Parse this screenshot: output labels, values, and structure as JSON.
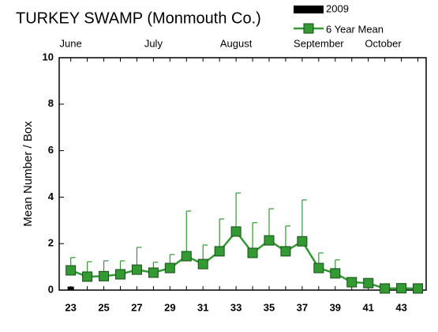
{
  "chart_data": {
    "type": "line",
    "title": "TURKEY SWAMP (Monmouth Co.)",
    "y_label": "Mean Number / Box",
    "x": [
      23,
      24,
      25,
      26,
      27,
      28,
      29,
      30,
      31,
      32,
      33,
      34,
      35,
      36,
      37,
      38,
      39,
      40,
      41,
      42,
      43,
      44
    ],
    "series": [
      {
        "name": "2009",
        "type": "bar",
        "color": "#000000",
        "values": [
          0.15,
          null,
          null,
          null,
          null,
          null,
          null,
          null,
          null,
          null,
          null,
          null,
          null,
          null,
          null,
          null,
          null,
          null,
          null,
          null,
          null,
          null
        ]
      },
      {
        "name": "6 Year Mean",
        "type": "line",
        "color": "#339933",
        "values": [
          0.85,
          0.58,
          0.6,
          0.68,
          0.88,
          0.75,
          0.95,
          1.46,
          1.12,
          1.67,
          2.52,
          1.6,
          2.14,
          1.67,
          2.1,
          0.95,
          0.72,
          0.34,
          0.3,
          0.07,
          0.08,
          0.07
        ],
        "errors": [
          0.55,
          0.64,
          0.66,
          0.58,
          0.96,
          0.45,
          0.58,
          1.94,
          0.82,
          1.39,
          1.66,
          1.3,
          1.36,
          1.09,
          1.78,
          0.65,
          0.58,
          0.1,
          0.05,
          0,
          0,
          0
        ]
      }
    ],
    "xlim": [
      22.3,
      44.5
    ],
    "xticks": [
      23,
      25,
      27,
      29,
      31,
      33,
      35,
      37,
      39,
      41,
      43
    ],
    "x2ticks": [
      {
        "value": 23,
        "label": "June"
      },
      {
        "value": 28,
        "label": "July"
      },
      {
        "value": 33,
        "label": "August"
      },
      {
        "value": 38,
        "label": "September"
      },
      {
        "value": 41.9,
        "label": "October"
      }
    ],
    "ylim": [
      0,
      10
    ],
    "yticks": [
      0,
      2,
      4,
      6,
      8,
      10
    ],
    "grid": false
  }
}
